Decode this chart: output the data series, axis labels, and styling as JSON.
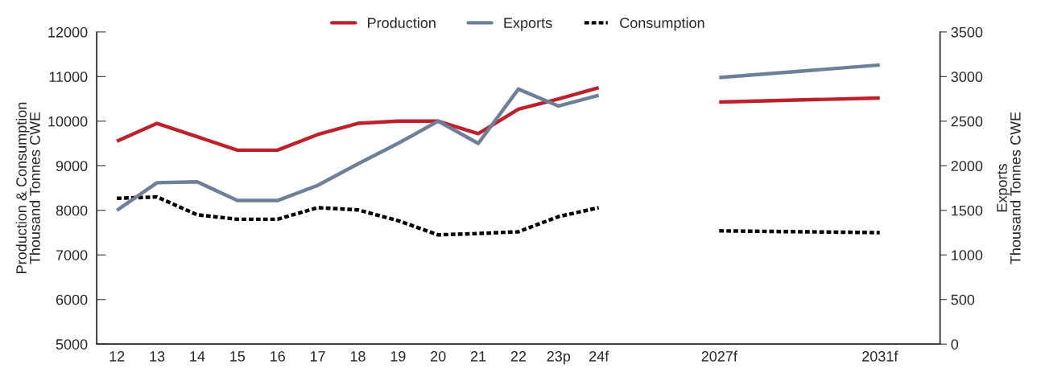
{
  "chart_data": {
    "type": "line",
    "ylabel": "Production & Consumption\nThousand Tonnes CWE",
    "y2label": "Exports\nThousand Tonnes CWE",
    "categories": [
      "12",
      "13",
      "14",
      "15",
      "16",
      "17",
      "18",
      "19",
      "20",
      "21",
      "22",
      "23p",
      "24f",
      null,
      null,
      "2027f",
      null,
      null,
      null,
      "2031f",
      null
    ],
    "ylim": [
      5000,
      12000
    ],
    "yticks": [
      5000,
      6000,
      7000,
      8000,
      9000,
      10000,
      11000,
      12000
    ],
    "y2lim": [
      0,
      3500
    ],
    "y2ticks": [
      0,
      500,
      1000,
      1500,
      2000,
      2500,
      3000,
      3500
    ],
    "legend": "top",
    "series": [
      {
        "name": "Production",
        "color": "#c0202a",
        "line_style": "solid",
        "values": [
          9550,
          9950,
          9650,
          9350,
          9350,
          9700,
          9950,
          10000,
          10000,
          9720,
          10270,
          10500,
          10750,
          null,
          null,
          null,
          null,
          null,
          null,
          null,
          null
        ]
      },
      {
        "color": "#c0202a",
        "line_style": "solid",
        "x": [
          "2027f",
          "2031f"
        ],
        "values": [
          10430,
          10520
        ]
      },
      {
        "name": "Exports",
        "color": "#6e7f99",
        "line_style": "solid",
        "axis": "y2",
        "values": [
          1500,
          1810,
          1820,
          1610,
          1610,
          1780,
          2020,
          2250,
          2500,
          2250,
          2860,
          2670,
          2790,
          null,
          null,
          null,
          null,
          null,
          null,
          null,
          null
        ]
      },
      {
        "color": "#6e7f99",
        "line_style": "solid",
        "axis": "y2",
        "x": [
          "2027f",
          "2031f"
        ],
        "values": [
          2990,
          3130
        ]
      },
      {
        "name": "Consumption",
        "color": "#000000",
        "line_style": "dotted",
        "values": [
          8270,
          8300,
          7900,
          7800,
          7800,
          8060,
          8010,
          7770,
          7450,
          7480,
          7520,
          7860,
          8060,
          null,
          null,
          null,
          null,
          null,
          null,
          null,
          null
        ]
      },
      {
        "color": "#000000",
        "line_style": "dotted",
        "x": [
          "2027f",
          "2031f"
        ],
        "values": [
          7540,
          7500
        ]
      }
    ]
  }
}
